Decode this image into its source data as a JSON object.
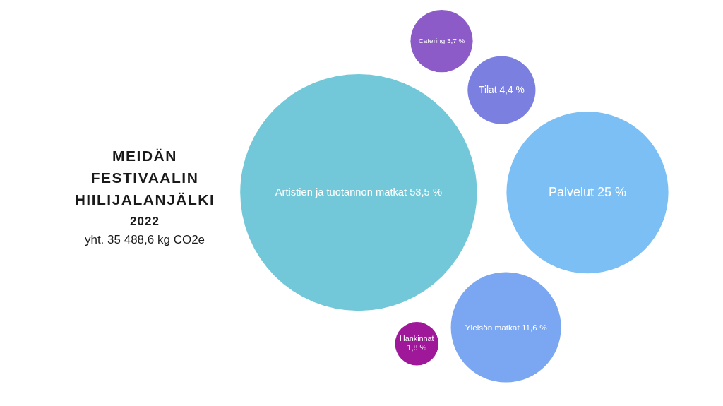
{
  "chart_data": {
    "type": "other",
    "title": "MEIDÄN FESTIVAALIN HIILIJALANJÄLKI",
    "subtitle": "2022",
    "annotations": [
      "yht. 35 488,6 kg CO2e"
    ],
    "categories": [
      "Artistien ja tuotannon matkat",
      "Palvelut",
      "Yleisön matkat",
      "Tilat",
      "Catering",
      "Hankinnat"
    ],
    "values": [
      53.5,
      25,
      11.6,
      4.4,
      3.7,
      1.8
    ],
    "value_labels": [
      "53,5 %",
      "25 %",
      "11,6 %",
      "4,4 %",
      "3,7 %",
      "1,8 %"
    ],
    "colors": [
      "#72c8d8",
      "#7bbff5",
      "#7aa6f2",
      "#7b80e0",
      "#8c5bc8",
      "#a0189a"
    ]
  }
}
